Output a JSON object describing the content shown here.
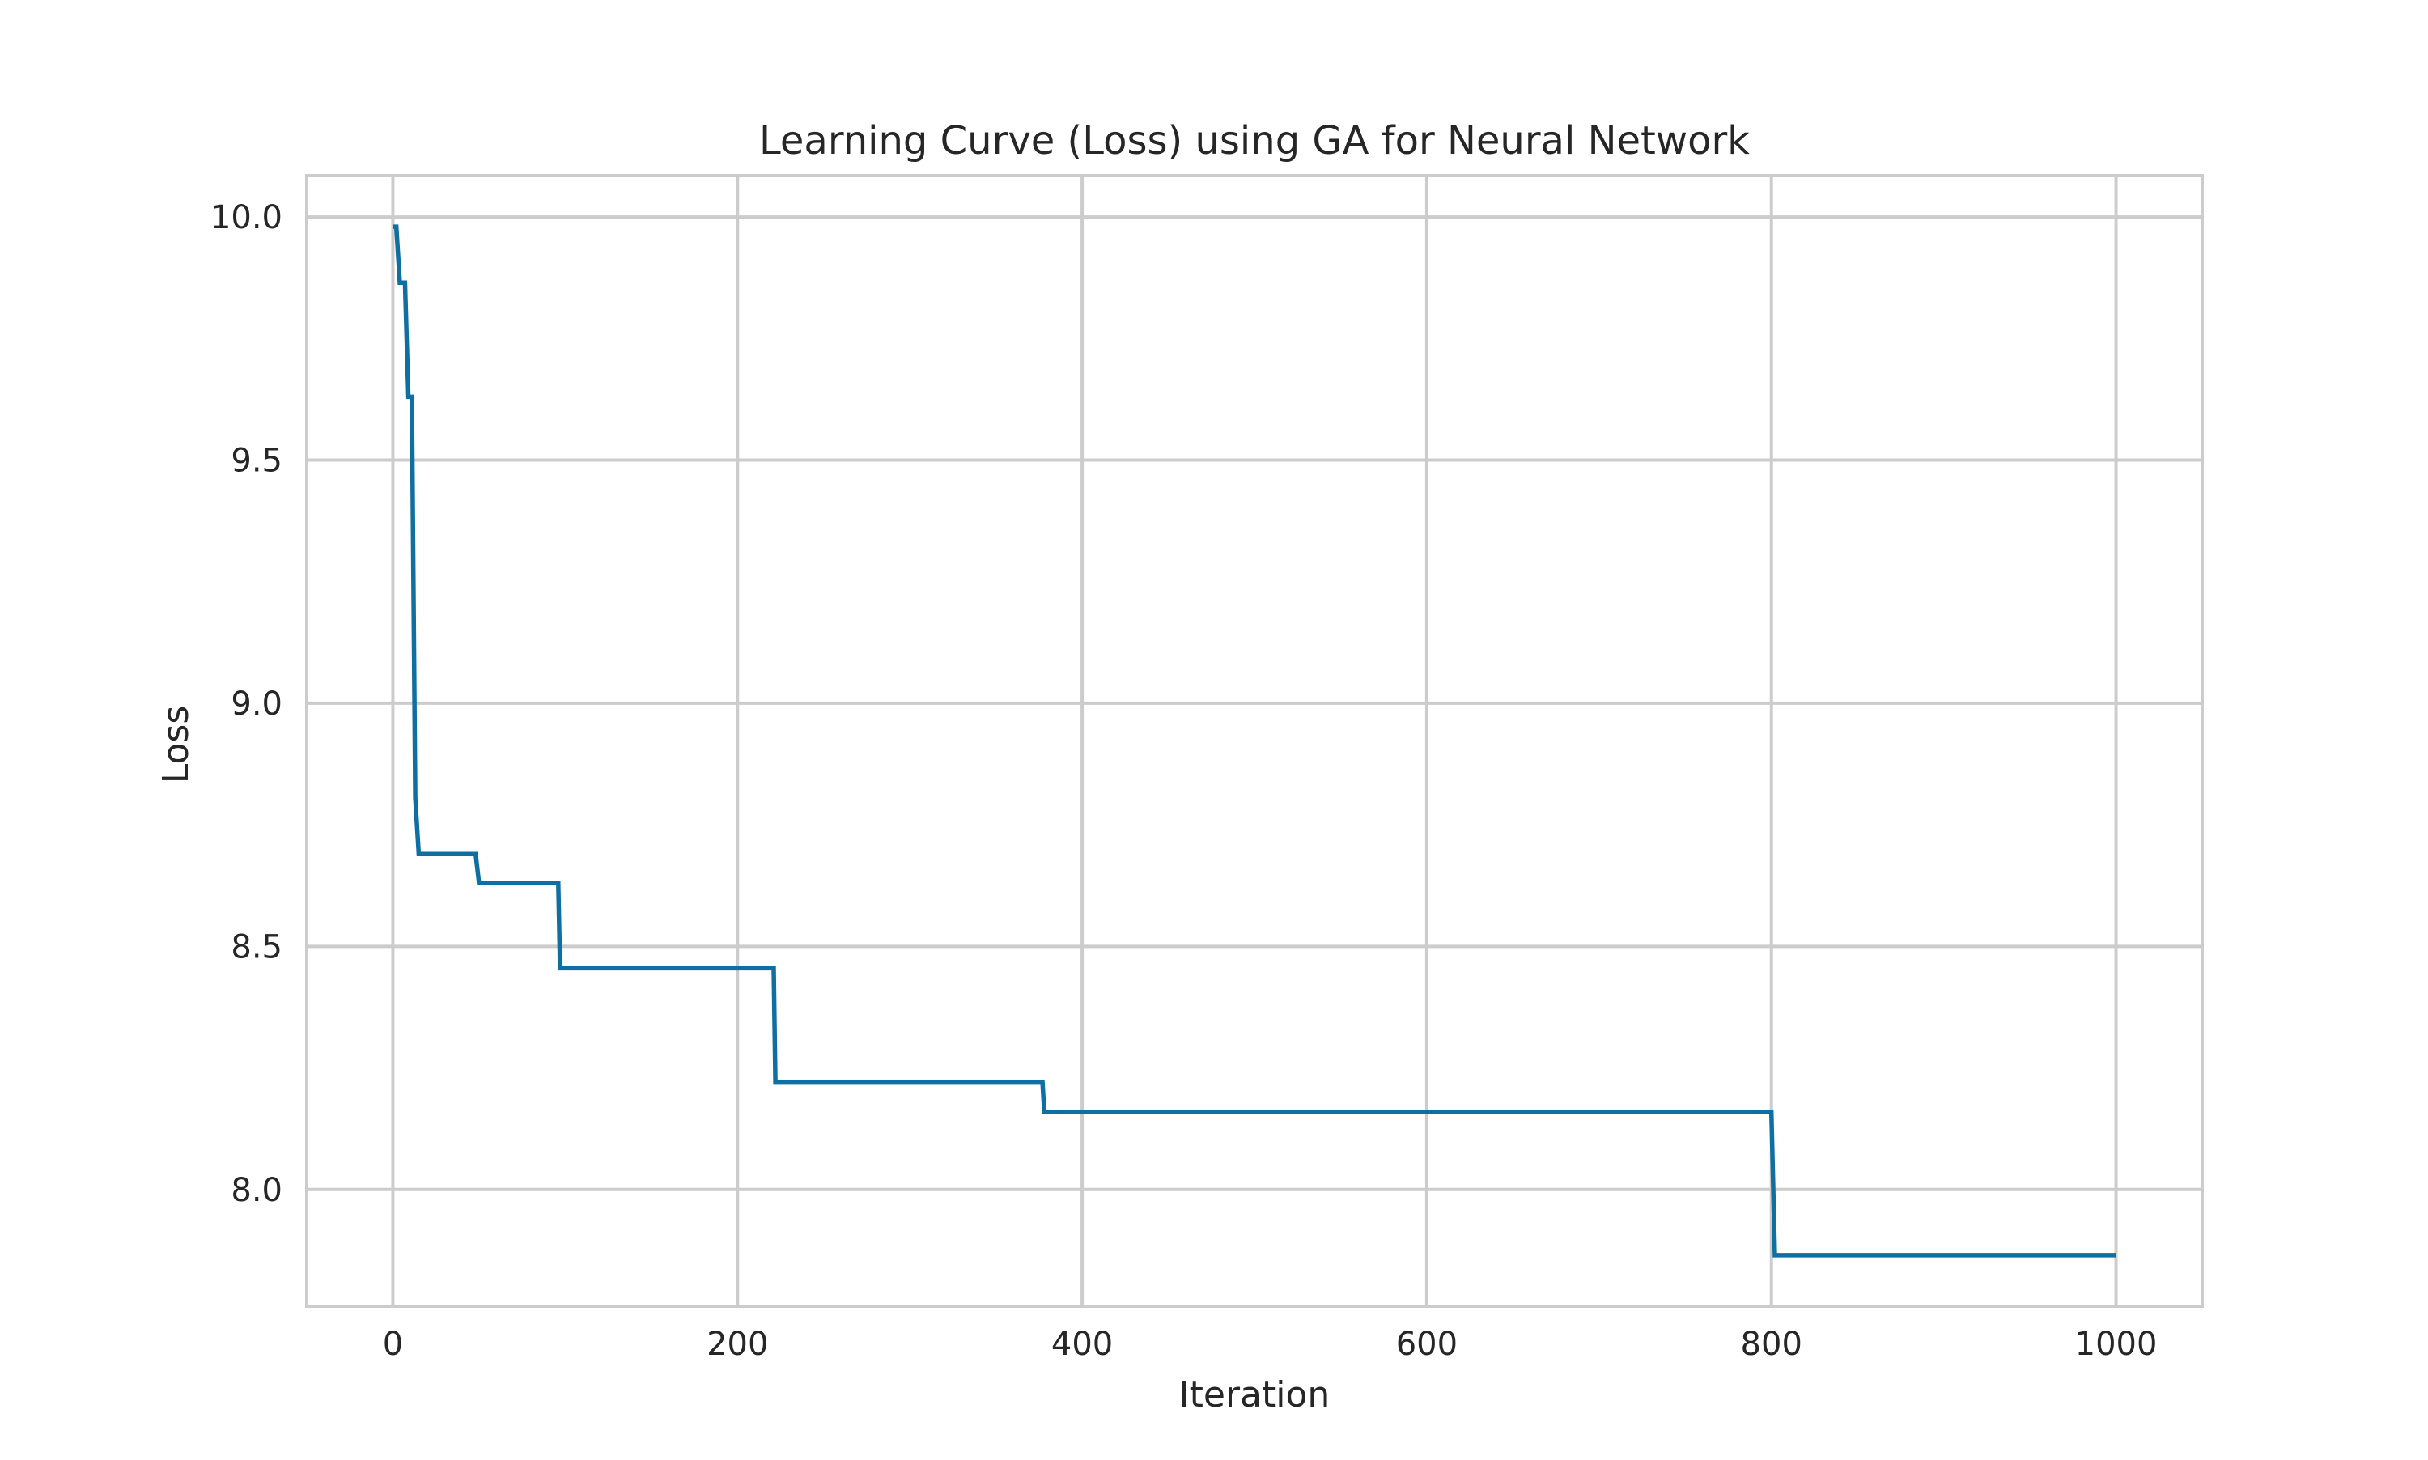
{
  "chart_data": {
    "type": "line",
    "title": "Learning Curve (Loss) using GA for Neural Network",
    "xlabel": "Iteration",
    "ylabel": "Loss",
    "xlim": [
      -50,
      1050
    ],
    "ylim": [
      7.76,
      10.085
    ],
    "xticks": [
      0,
      200,
      400,
      600,
      800,
      1000
    ],
    "xtick_labels": [
      "0",
      "200",
      "400",
      "600",
      "800",
      "1000"
    ],
    "yticks": [
      8.0,
      8.5,
      9.0,
      9.5,
      10.0
    ],
    "ytick_labels": [
      "8.0",
      "8.5",
      "9.0",
      "9.5",
      "10.0"
    ],
    "grid": true,
    "series": [
      {
        "color": "#0e6fa3",
        "x": [
          0,
          2,
          4,
          7,
          9,
          11,
          13,
          15,
          48,
          50,
          96,
          97,
          221,
          222,
          377,
          378,
          800,
          802,
          1000
        ],
        "y": [
          9.98,
          9.98,
          9.865,
          9.865,
          9.63,
          9.63,
          8.805,
          8.69,
          8.69,
          8.63,
          8.63,
          8.455,
          8.455,
          8.22,
          8.22,
          8.16,
          8.16,
          7.865,
          7.865
        ]
      }
    ]
  }
}
